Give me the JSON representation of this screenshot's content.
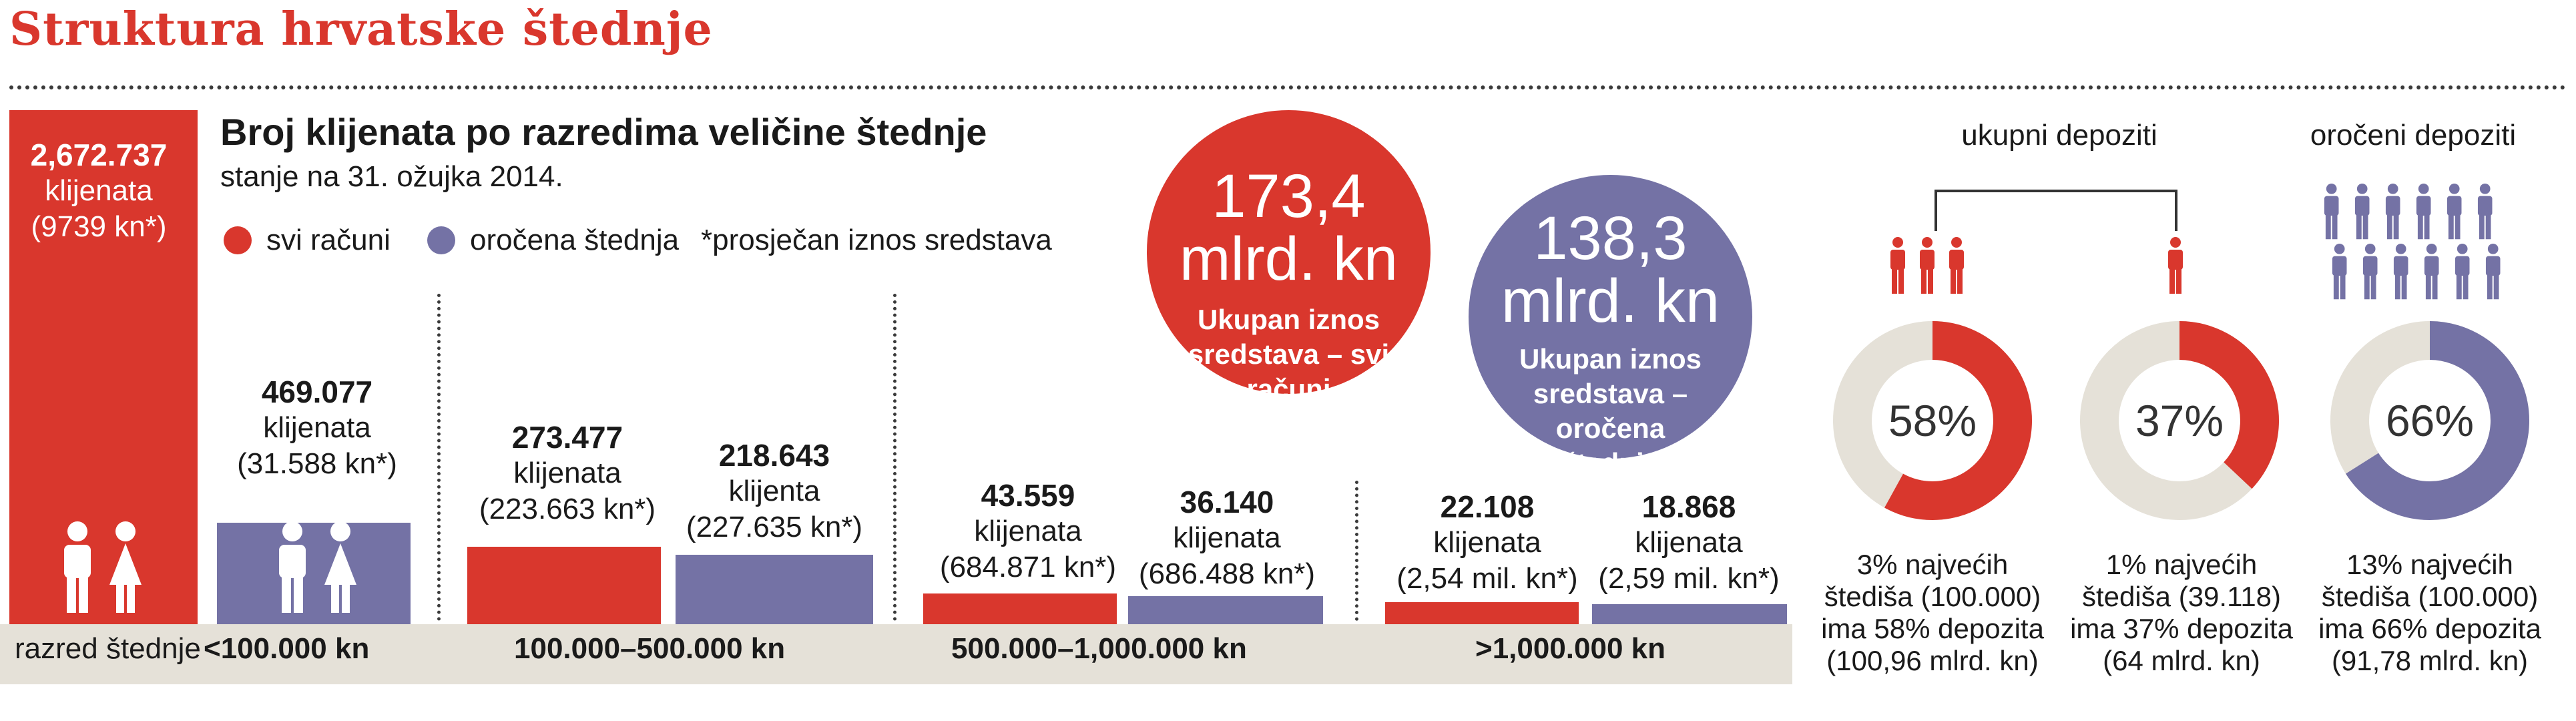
{
  "title": "Struktura hrvatske štednje",
  "subtitle": "Broj klijenata po razredima veličine štednje",
  "date": "stanje na 31. ožujka 2014.",
  "legend": {
    "all_accounts": "svi računi",
    "term_savings": "oročena štednja",
    "avg_note": "*prosječan iznos sredstava"
  },
  "colors": {
    "red": "#d9372d",
    "blue": "#7472a5",
    "band": "#e5e1d8",
    "donut_bg": "#e5e1d8"
  },
  "band_title": "razred štednje",
  "chart_data": {
    "type": "bar",
    "title": "Broj klijenata po razredima veličine štednje",
    "categories": [
      "<100.000 kn",
      "100.000–500.000 kn",
      "500.000–1,000.000 kn",
      ">1,000.000 kn"
    ],
    "series": [
      {
        "name": "svi računi",
        "values": [
          2672737,
          273477,
          43559,
          22108
        ],
        "labels": [
          {
            "number": "2,672.737",
            "unit": "klijenata",
            "avg": "(9739 kn*)"
          },
          {
            "number": "273.477",
            "unit": "klijenata",
            "avg": "(223.663 kn*)"
          },
          {
            "number": "43.559",
            "unit": "klijenata",
            "avg": "(684.871 kn*)"
          },
          {
            "number": "22.108",
            "unit": "klijenata",
            "avg": "(2,54 mil. kn*)"
          }
        ]
      },
      {
        "name": "oročena štednja",
        "values": [
          469077,
          218643,
          36140,
          18868
        ],
        "labels": [
          {
            "number": "469.077",
            "unit": "klijenata",
            "avg": "(31.588 kn*)"
          },
          {
            "number": "218.643",
            "unit": "klijenta",
            "avg": "(227.635 kn*)"
          },
          {
            "number": "36.140",
            "unit": "klijenata",
            "avg": "(686.488 kn*)"
          },
          {
            "number": "18.868",
            "unit": "klijenata",
            "avg": "(2,59 mil. kn*)"
          }
        ]
      }
    ]
  },
  "totals": {
    "all": {
      "amount_line1": "173,4",
      "amount_line2": "mlrd. kn",
      "caption": [
        "Ukupan iznos",
        "sredstava – svi",
        "računi"
      ]
    },
    "term": {
      "amount_line1": "138,3",
      "amount_line2": "mlrd. kn",
      "caption": [
        "Ukupan iznos",
        "sredstava –",
        "oročena",
        "štednja"
      ]
    }
  },
  "deposits": {
    "total_label": "ukupni depoziti",
    "term_label": "oročeni depoziti",
    "donuts": [
      {
        "percent": 58,
        "label": "58%",
        "color": "red",
        "note": [
          "3% najvećih",
          "štediša (100.000)",
          "ima 58% depozita",
          "(100,96 mlrd. kn)"
        ]
      },
      {
        "percent": 37,
        "label": "37%",
        "color": "red",
        "note": [
          "1% najvećih",
          "štediša (39.118)",
          "ima 37% depozita",
          "(64 mlrd. kn)"
        ]
      },
      {
        "percent": 66,
        "label": "66%",
        "color": "blue",
        "note": [
          "13% najvećih",
          "štediša (100.000)",
          "ima 66% depozita",
          "(91,78 mlrd. kn)"
        ]
      }
    ]
  }
}
